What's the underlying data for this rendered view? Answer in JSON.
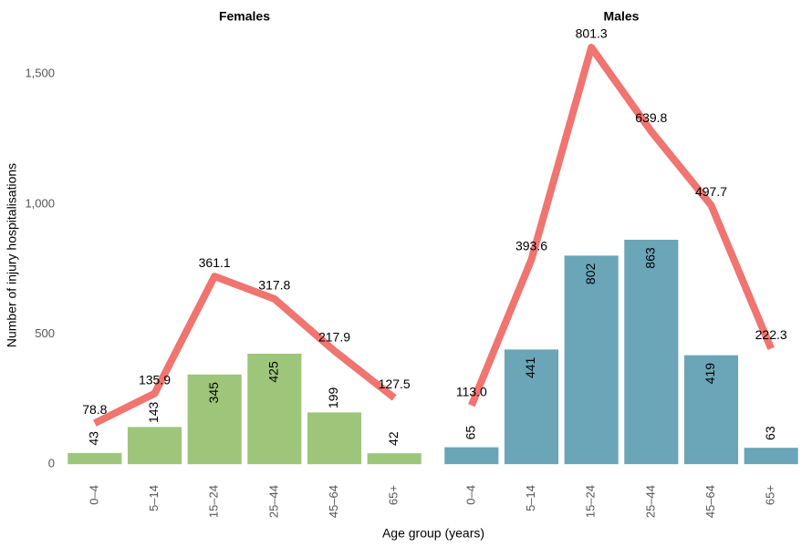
{
  "chart_data": {
    "type": "bar",
    "y_label": "Number of injury hospitalisations",
    "x_label": "Age group (years)",
    "ylim": [
      -10,
      1750
    ],
    "yticks": [
      0,
      500,
      {
        "value": 1000,
        "label": "1,000"
      },
      {
        "value": 1500,
        "label": "1,500"
      }
    ],
    "y2lim": [
      -5,
      875
    ],
    "panels": [
      {
        "title": "Females",
        "categories": [
          "0–4",
          "5–14",
          "15–24",
          "25–44",
          "45–64",
          "65+"
        ],
        "series": [
          {
            "type": "bar",
            "color": "#9dc67a",
            "values": [
              43,
              143,
              345,
              425,
              199,
              42
            ]
          },
          {
            "type": "line",
            "axis": "y2",
            "color": "#f07470",
            "values": [
              78.8,
              135.9,
              361.1,
              317.8,
              217.9,
              127.5
            ],
            "value_labels": [
              "78.8",
              "135.9",
              "361.1",
              "317.8",
              "217.9",
              "127.5"
            ]
          }
        ]
      },
      {
        "title": "Males",
        "categories": [
          "0–4",
          "5–14",
          "15–24",
          "25–44",
          "45–64",
          "65+"
        ],
        "series": [
          {
            "type": "bar",
            "color": "#6aa5b8",
            "values": [
              65,
              441,
              802,
              863,
              419,
              63
            ]
          },
          {
            "type": "line",
            "axis": "y2",
            "color": "#f07470",
            "values": [
              113.0,
              393.6,
              801.3,
              639.8,
              497.7,
              222.3
            ],
            "value_labels": [
              "113.0",
              "393.6",
              "801.3",
              "639.8",
              "497.7",
              "222.3"
            ]
          }
        ]
      }
    ]
  }
}
